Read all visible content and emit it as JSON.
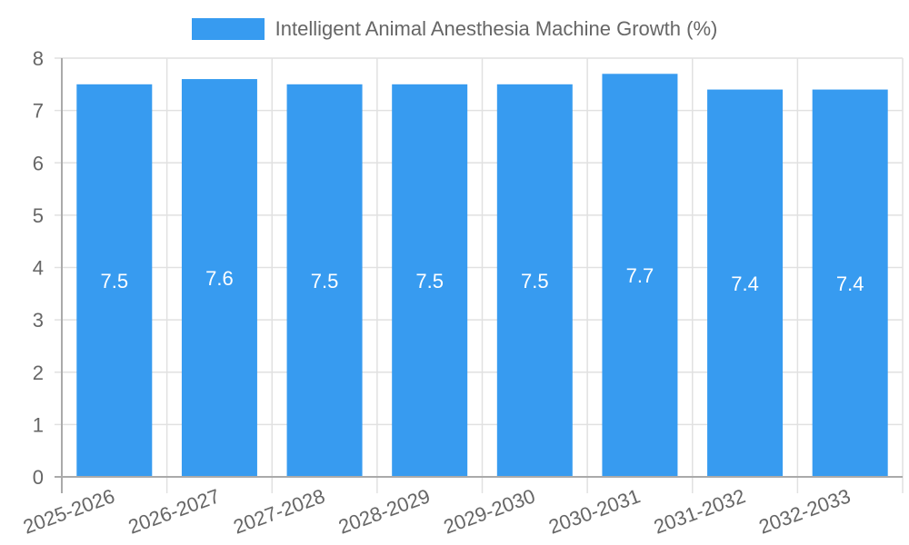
{
  "chart_data": {
    "type": "bar",
    "title": "",
    "xlabel": "",
    "ylabel": "",
    "categories": [
      "2025-2026",
      "2026-2027",
      "2027-2028",
      "2028-2029",
      "2029-2030",
      "2030-2031",
      "2031-2032",
      "2032-2033"
    ],
    "series": [
      {
        "name": "Intelligent Animal Anesthesia Machine Growth (%)",
        "values": [
          7.5,
          7.6,
          7.5,
          7.5,
          7.5,
          7.7,
          7.4,
          7.4
        ],
        "color": "#379bf0"
      }
    ],
    "data_labels": [
      "7.5",
      "7.6",
      "7.5",
      "7.5",
      "7.5",
      "7.7",
      "7.4",
      "7.4"
    ],
    "ylim": [
      0,
      8
    ],
    "yticks": [
      0,
      1,
      2,
      3,
      4,
      5,
      6,
      7,
      8
    ],
    "grid": true,
    "legend_position": "top"
  },
  "legend": {
    "label": "Intelligent Animal Anesthesia Machine Growth (%)",
    "color": "#379bf0"
  }
}
